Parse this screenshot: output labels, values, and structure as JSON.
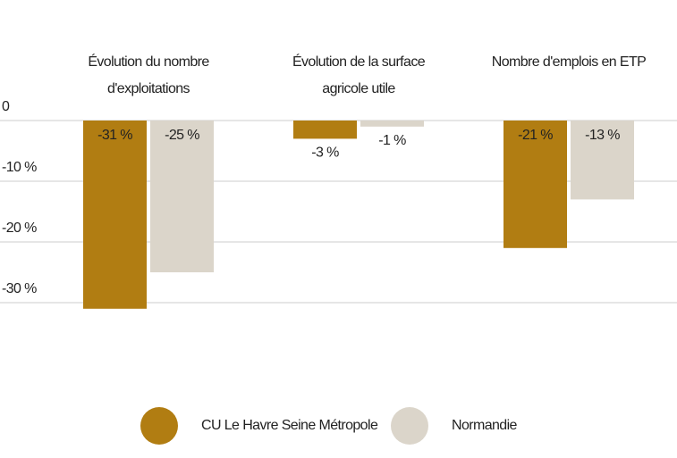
{
  "chart_data": {
    "type": "bar",
    "categories": [
      "Évolution du nombre d'exploitations",
      "Évolution de la surface agricole utile",
      "Nombre d'emplois en ETP"
    ],
    "series": [
      {
        "name": "CU Le Havre Seine Métropole",
        "color": "#b17d12",
        "values": [
          -31,
          -3,
          -21
        ],
        "value_labels": [
          "-31 %",
          "-3 %",
          "-21 %"
        ]
      },
      {
        "name": "Normandie",
        "color": "#dbd5ca",
        "values": [
          -25,
          -1,
          -13
        ],
        "value_labels": [
          "-25 %",
          "-1 %",
          "-13 %"
        ]
      }
    ],
    "ylim": [
      -32,
      0
    ],
    "yticks": [
      0,
      {
        "value": -10,
        "label": "-10 %"
      },
      {
        "value": -20,
        "label": "-20 %"
      },
      {
        "value": -30,
        "label": "-30 %"
      }
    ],
    "grid": true,
    "legend": "bottom"
  }
}
